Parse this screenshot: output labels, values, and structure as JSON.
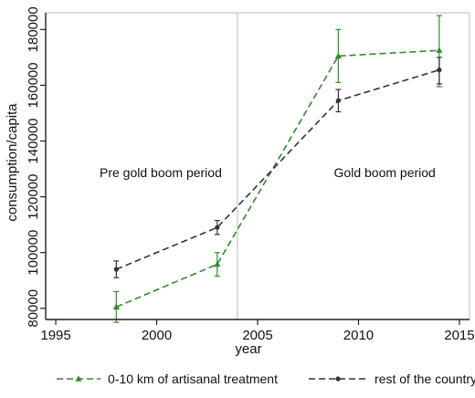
{
  "chart_data": {
    "type": "line",
    "title": "",
    "xlabel": "year",
    "ylabel": "consumption/capita",
    "xlim": [
      1994.5,
      2015.5
    ],
    "ylim": [
      76000,
      186000
    ],
    "x_ticks": [
      1995,
      2000,
      2005,
      2010,
      2015
    ],
    "y_ticks": [
      80000,
      100000,
      120000,
      140000,
      160000,
      180000
    ],
    "x_tick_labels": [
      "1995",
      "2000",
      "2005",
      "2010",
      "2015"
    ],
    "y_tick_labels": [
      "80000",
      "100000",
      "120000",
      "140000",
      "160000",
      "180000"
    ],
    "grid": false,
    "reference_line_x": 2004,
    "annotations": [
      {
        "text": "Pre gold boom period",
        "x": 2000.2,
        "y": 127000
      },
      {
        "text": "Gold boom period",
        "x": 2011.3,
        "y": 127000
      }
    ],
    "series": [
      {
        "name": "0-10 km of artisanal treatment",
        "color": "#2e8b2e",
        "line_style": "dashed",
        "marker": "triangle",
        "x": [
          1998,
          2003,
          2009,
          2014
        ],
        "y": [
          80500,
          95800,
          170500,
          172500
        ],
        "err_low": [
          75000,
          91500,
          161000,
          159500
        ],
        "err_high": [
          86000,
          100000,
          180000,
          185000
        ]
      },
      {
        "name": "rest of the country",
        "color": "#333333",
        "line_style": "dashed",
        "marker": "dot",
        "x": [
          1998,
          2003,
          2009,
          2014
        ],
        "y": [
          94000,
          109000,
          154500,
          165500
        ],
        "err_low": [
          91000,
          106500,
          150500,
          160500
        ],
        "err_high": [
          97000,
          111500,
          158500,
          170000
        ]
      }
    ],
    "legend_position": "bottom"
  }
}
